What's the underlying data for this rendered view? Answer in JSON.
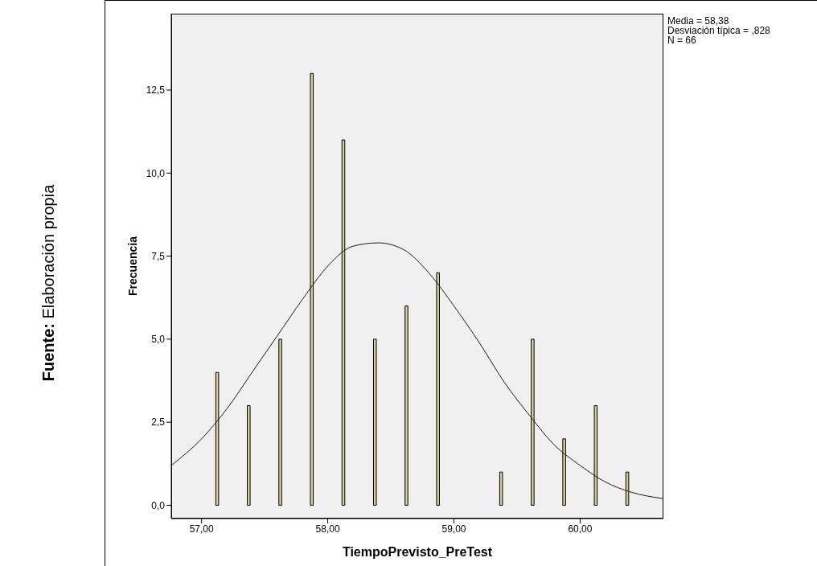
{
  "chart_data": {
    "type": "histogram",
    "xlabel": "TiempoPrevisto_PreTest",
    "ylabel": "Frecuencia",
    "bins": [
      57.0,
      57.25,
      57.5,
      57.75,
      58.0,
      58.25,
      58.5,
      58.75,
      59.0,
      59.25,
      59.5,
      59.75,
      60.0,
      60.25,
      60.5
    ],
    "values": [
      4,
      3,
      5,
      13,
      11,
      5,
      6,
      7,
      0,
      1,
      5,
      2,
      3,
      1
    ],
    "color": "#d3ce98",
    "series": [
      {
        "type": "line",
        "color": "#1a1a1a",
        "x": [
          56.76,
          57.0,
          57.2,
          57.4,
          57.6,
          57.8,
          58.0,
          58.2,
          58.4,
          58.6,
          58.8,
          59.0,
          59.2,
          59.4,
          59.6,
          59.8,
          60.0,
          60.2,
          60.4,
          60.66
        ],
        "values": [
          1.2,
          2.0,
          2.9,
          4.0,
          5.1,
          6.2,
          7.2,
          7.8,
          7.9,
          7.7,
          7.0,
          6.0,
          4.9,
          3.7,
          2.7,
          1.8,
          1.2,
          0.7,
          0.4,
          0.2
        ]
      }
    ],
    "xlim": [
      56.76,
      60.66
    ],
    "xticks": [
      {
        "value": 57,
        "label": "57,00"
      },
      {
        "value": 58,
        "label": "58,00"
      },
      {
        "value": 59,
        "label": "59,00"
      },
      {
        "value": 60,
        "label": "60,00"
      }
    ],
    "ylim": [
      -0.4,
      14.8
    ],
    "yticks": [
      {
        "value": 0,
        "label": "0,0"
      },
      {
        "value": 2.5,
        "label": "2,5"
      },
      {
        "value": 5,
        "label": "5,0"
      },
      {
        "value": 7.5,
        "label": "7,5"
      },
      {
        "value": 10,
        "label": "10,0"
      },
      {
        "value": 12.5,
        "label": "12,5"
      }
    ],
    "grid": false,
    "legend": false,
    "annotations": [
      "Media = 58,38",
      "Desviación típica = ,828",
      "N = 66",
      "Fuente: Elaboración propia"
    ]
  }
}
